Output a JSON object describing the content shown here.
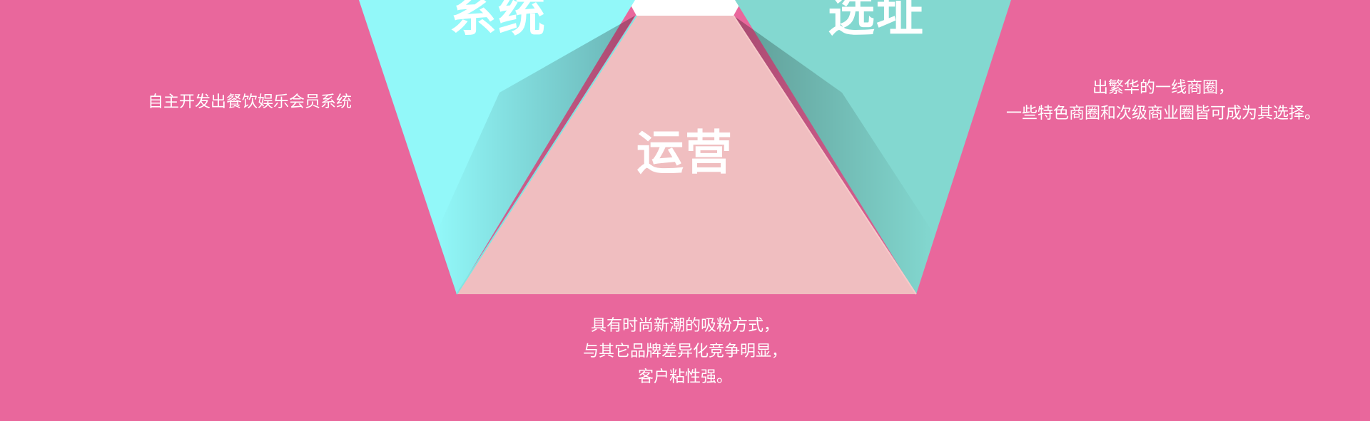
{
  "panels": {
    "system": {
      "title": "系统",
      "color": "#92f8f9",
      "description": [
        "自主开发出餐饮娱乐会员系统"
      ]
    },
    "location": {
      "title": "选址",
      "color": "#83d8d0",
      "description": [
        "出繁华的一线商圈，",
        "一些特色商圈和次级商业圈皆可成为其选择。"
      ]
    },
    "operation": {
      "title": "运营",
      "color": "#f0bec0",
      "description": [
        "具有时尚新潮的吸粉方式，",
        "与其它品牌差异化竞争明显，",
        "客户粘性强。"
      ]
    }
  },
  "colors": {
    "background": "#e9679c",
    "top_notch": "#ffffff"
  }
}
